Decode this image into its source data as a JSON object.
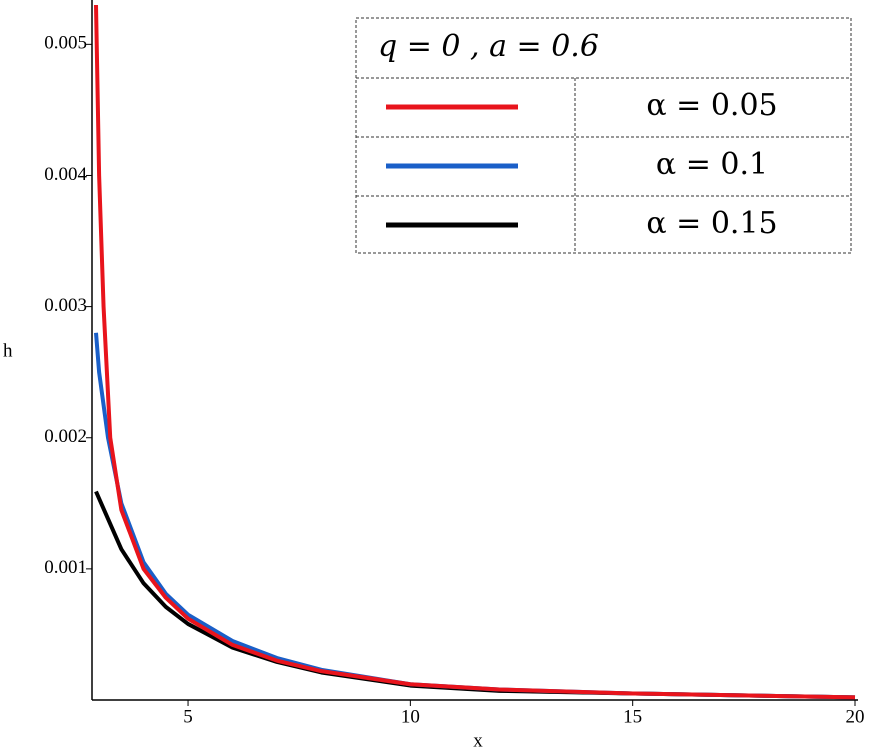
{
  "chart_data": {
    "type": "line",
    "x_label": "x",
    "y_label": "h",
    "xlim": [
      2.84,
      20
    ],
    "ylim": [
      0,
      0.0053
    ],
    "xticks": [
      5,
      10,
      15,
      20
    ],
    "yticks": [
      0.001,
      0.002,
      0.003,
      0.004,
      0.005
    ],
    "legend_title": "q = 0  ,  a = 0.6",
    "series": [
      {
        "name": "α = 0.05",
        "color": "#e8141c",
        "x": [
          2.93,
          3.0,
          3.1,
          3.25,
          3.5,
          4,
          4.5,
          5,
          6,
          7,
          8,
          10,
          12,
          15,
          20
        ],
        "values": [
          0.0053,
          0.004,
          0.003,
          0.002,
          0.00145,
          0.001,
          0.00078,
          0.00062,
          0.00042,
          0.0003,
          0.00022,
          0.00012,
          8e-05,
          5e-05,
          2e-05
        ]
      },
      {
        "name": "α = 0.1",
        "color": "#1a5fc8",
        "x": [
          2.93,
          3.0,
          3.2,
          3.5,
          4,
          4.5,
          5,
          6,
          7,
          8,
          10,
          12,
          15,
          20
        ],
        "values": [
          0.0028,
          0.0025,
          0.002,
          0.0015,
          0.00105,
          0.00081,
          0.00065,
          0.00045,
          0.00032,
          0.00023,
          0.00012,
          8e-05,
          5e-05,
          2e-05
        ]
      },
      {
        "name": "α = 0.15",
        "color": "#000000",
        "x": [
          2.93,
          3.5,
          4,
          4.5,
          5,
          6,
          7,
          8,
          10,
          12,
          15,
          20
        ],
        "values": [
          0.00159,
          0.00115,
          0.00089,
          0.00071,
          0.00058,
          0.0004,
          0.00029,
          0.00021,
          0.00011,
          7e-05,
          5e-05,
          2e-05
        ]
      }
    ]
  }
}
